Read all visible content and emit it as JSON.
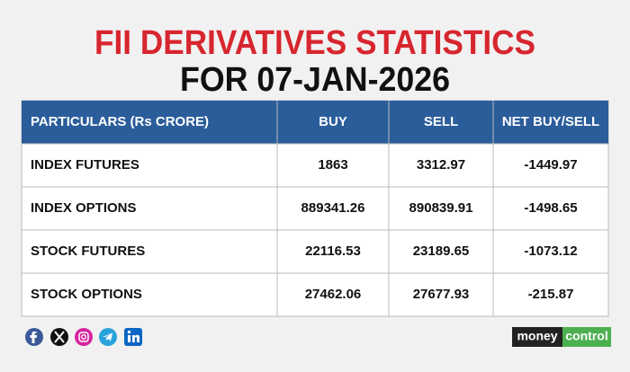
{
  "header": {
    "title": "FII DERIVATIVES STATISTICS",
    "subtitle": "FOR 07-JAN-2026"
  },
  "table": {
    "columns": [
      "PARTICULARS (Rs CRORE)",
      "BUY",
      "SELL",
      "NET BUY/SELL"
    ],
    "rows": [
      [
        "INDEX FUTURES",
        "1863",
        "3312.97",
        "-1449.97"
      ],
      [
        "INDEX OPTIONS",
        "889341.26",
        "890839.91",
        "-1498.65"
      ],
      [
        "STOCK FUTURES",
        "22116.53",
        "23189.65",
        "-1073.12"
      ],
      [
        "STOCK OPTIONS",
        "27462.06",
        "27677.93",
        "-215.87"
      ]
    ]
  },
  "footer": {
    "logo": {
      "left": "money",
      "right": "control"
    }
  }
}
